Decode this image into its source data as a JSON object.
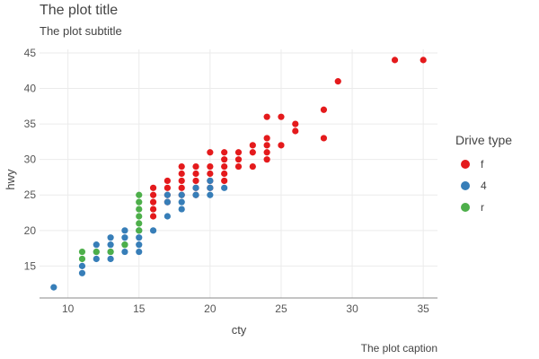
{
  "chart_data": {
    "type": "scatter",
    "title": "The plot title",
    "subtitle": "The plot subtitle",
    "caption": "The plot caption",
    "xlabel": "cty",
    "ylabel": "hwy",
    "xlim": [
      8,
      36
    ],
    "ylim": [
      10.5,
      45.5
    ],
    "x_ticks": [
      10,
      15,
      20,
      25,
      30,
      35
    ],
    "y_ticks": [
      15,
      20,
      25,
      30,
      35,
      40,
      45
    ],
    "grid": true,
    "legend": {
      "title": "Drive type",
      "position": "right"
    },
    "series": [
      {
        "name": "f",
        "color": "#e41a1c",
        "points": [
          [
            16,
            26
          ],
          [
            16,
            25
          ],
          [
            16,
            24
          ],
          [
            16,
            23
          ],
          [
            16,
            22
          ],
          [
            17,
            27
          ],
          [
            17,
            26
          ],
          [
            17,
            25
          ],
          [
            17,
            24
          ],
          [
            18,
            29
          ],
          [
            18,
            28
          ],
          [
            18,
            27
          ],
          [
            18,
            26
          ],
          [
            18,
            25
          ],
          [
            19,
            29
          ],
          [
            19,
            28
          ],
          [
            19,
            27
          ],
          [
            19,
            26
          ],
          [
            19,
            25
          ],
          [
            20,
            31
          ],
          [
            20,
            29
          ],
          [
            20,
            28
          ],
          [
            20,
            27
          ],
          [
            20,
            26
          ],
          [
            21,
            31
          ],
          [
            21,
            30
          ],
          [
            21,
            29
          ],
          [
            21,
            28
          ],
          [
            21,
            27
          ],
          [
            22,
            31
          ],
          [
            22,
            30
          ],
          [
            22,
            29
          ],
          [
            23,
            32
          ],
          [
            23,
            31
          ],
          [
            23,
            29
          ],
          [
            24,
            36
          ],
          [
            24,
            33
          ],
          [
            24,
            32
          ],
          [
            24,
            31
          ],
          [
            24,
            30
          ],
          [
            25,
            36
          ],
          [
            25,
            32
          ],
          [
            26,
            35
          ],
          [
            26,
            34
          ],
          [
            28,
            37
          ],
          [
            28,
            33
          ],
          [
            29,
            41
          ],
          [
            33,
            44
          ],
          [
            35,
            44
          ]
        ]
      },
      {
        "name": "4",
        "color": "#377eb8",
        "points": [
          [
            9,
            12
          ],
          [
            11,
            15
          ],
          [
            11,
            14
          ],
          [
            12,
            18
          ],
          [
            12,
            17
          ],
          [
            12,
            16
          ],
          [
            13,
            19
          ],
          [
            13,
            18
          ],
          [
            13,
            17
          ],
          [
            13,
            16
          ],
          [
            14,
            20
          ],
          [
            14,
            19
          ],
          [
            14,
            18
          ],
          [
            14,
            17
          ],
          [
            15,
            20
          ],
          [
            15,
            19
          ],
          [
            15,
            18
          ],
          [
            15,
            17
          ],
          [
            16,
            20
          ],
          [
            17,
            25
          ],
          [
            17,
            24
          ],
          [
            17,
            22
          ],
          [
            18,
            25
          ],
          [
            18,
            24
          ],
          [
            18,
            23
          ],
          [
            19,
            26
          ],
          [
            19,
            25
          ],
          [
            20,
            27
          ],
          [
            20,
            26
          ],
          [
            20,
            25
          ],
          [
            21,
            26
          ]
        ]
      },
      {
        "name": "r",
        "color": "#4daf4a",
        "points": [
          [
            11,
            17
          ],
          [
            11,
            16
          ],
          [
            12,
            17
          ],
          [
            13,
            17
          ],
          [
            14,
            18
          ],
          [
            15,
            25
          ],
          [
            15,
            24
          ],
          [
            15,
            23
          ],
          [
            15,
            22
          ],
          [
            15,
            21
          ],
          [
            15,
            20
          ]
        ]
      }
    ]
  }
}
